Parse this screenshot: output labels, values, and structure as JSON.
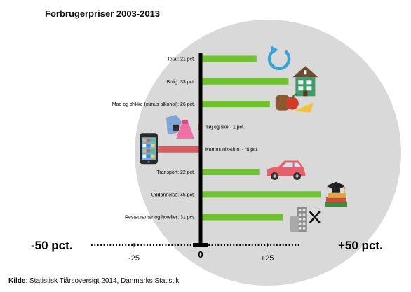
{
  "chart_data": {
    "type": "bar",
    "orientation": "horizontal",
    "title": "Forbrugerpriser 2003-2013",
    "categories": [
      "Total: 21 pct.",
      "Bolig: 33 pct.",
      "Mad og drikke (minus alkohol): 26 pct.",
      "Tøj og sko: -1 pct.",
      "Kommunikation: -16 pct.",
      "Transport: 22 pct.",
      "Uddannelse: 45 pct.",
      "Restauranter og hoteller: 31 pct."
    ],
    "values": [
      21,
      33,
      26,
      -1,
      -16,
      22,
      45,
      31
    ],
    "icons": [
      "refresh-icon",
      "house-icon",
      "food-icon",
      "clothes-icon",
      "smartphone-icon",
      "car-icon",
      "graduation-icon",
      "restaurant-icon"
    ],
    "colors": {
      "positive": "#6cc42a",
      "negative": "#d85b5b",
      "circle": "#d9d9d9",
      "axis": "#000000"
    },
    "xlim": [
      -50,
      50
    ],
    "x_ticks": [
      {
        "value": -50,
        "label": "-50 pct."
      },
      {
        "value": -25,
        "label": "-25"
      },
      {
        "value": 0,
        "label": "0"
      },
      {
        "value": 25,
        "label": "+25"
      },
      {
        "value": 50,
        "label": "+50 pct."
      }
    ],
    "grid": false,
    "xlabel": "",
    "ylabel": ""
  },
  "source": {
    "label": "Kilde",
    "text": ": Statistisk Tiårsoversigt 2014, Danmarks Statistik"
  }
}
